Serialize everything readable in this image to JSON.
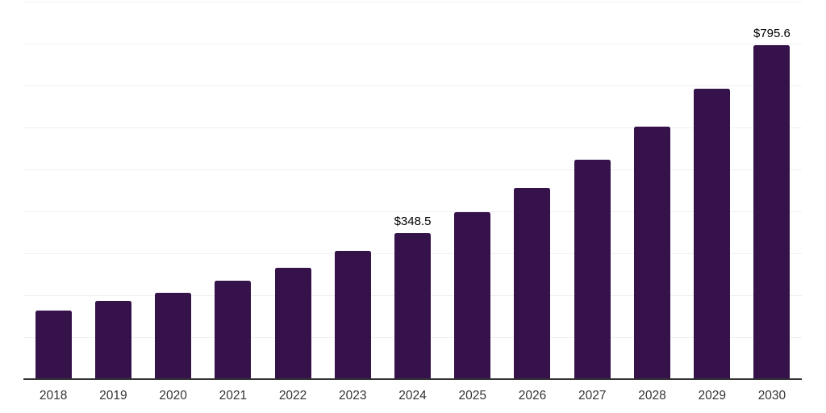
{
  "chart_data": {
    "type": "bar",
    "title": "",
    "xlabel": "",
    "ylabel": "",
    "categories": [
      "2018",
      "2019",
      "2020",
      "2021",
      "2022",
      "2023",
      "2024",
      "2025",
      "2026",
      "2027",
      "2028",
      "2029",
      "2030"
    ],
    "values": [
      163.5,
      186.5,
      206.0,
      234.5,
      266.0,
      306.0,
      348.5,
      398.0,
      456.0,
      523.0,
      602.0,
      692.5,
      795.6
    ],
    "data_labels": [
      "",
      "",
      "",
      "",
      "",
      "",
      "$348.5",
      "",
      "",
      "",
      "",
      "",
      "$795.6"
    ],
    "ylim": [
      0,
      900
    ],
    "grid_step": 100,
    "grid": true,
    "legend": false,
    "colors": {
      "bar": "#36124B",
      "gridline": "#F0F0F0",
      "axis": "#333333",
      "data_label": "#000000",
      "tick_label": "#333333",
      "background": "#FFFFFF"
    }
  }
}
